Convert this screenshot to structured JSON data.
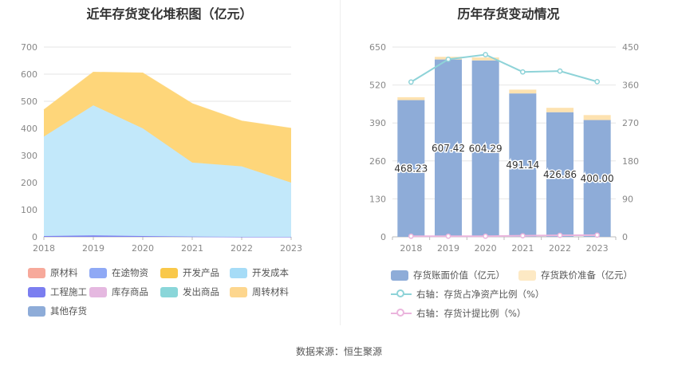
{
  "left": {
    "title": "近年存货变化堆积图（亿元）",
    "legend": [
      {
        "label": "原材料",
        "color": "#f7a99b"
      },
      {
        "label": "在途物资",
        "color": "#8fa9f5"
      },
      {
        "label": "开发产品",
        "color": "#f9c84a"
      },
      {
        "label": "开发成本",
        "color": "#a6dcf7"
      },
      {
        "label": "工程施工",
        "color": "#7b7ef0"
      },
      {
        "label": "库存商品",
        "color": "#e5b8e0"
      },
      {
        "label": "发出商品",
        "color": "#8ad6d9"
      },
      {
        "label": "周转材料",
        "color": "#fdd68e"
      },
      {
        "label": "其他存货",
        "color": "#8eacd8"
      }
    ]
  },
  "right": {
    "title": "历年存货变动情况",
    "legend": [
      {
        "label": "存货账面价值（亿元）",
        "color": "#8eacd8"
      },
      {
        "label": "存货跌价准备（亿元）",
        "color": "#fde9c4"
      },
      {
        "label": "右轴：存货占净资产比例（%）",
        "color": "#8ed3d8"
      },
      {
        "label": "右轴：存货计提比例（%）",
        "color": "#ebb5dd"
      }
    ]
  },
  "source": "数据来源：恒生聚源",
  "chart_data": [
    {
      "type": "area",
      "title": "近年存货变化堆积图（亿元）",
      "x": [
        "2018",
        "2019",
        "2020",
        "2021",
        "2022",
        "2023"
      ],
      "ylim": [
        0,
        700
      ],
      "yticks": [
        0,
        100,
        200,
        300,
        400,
        500,
        600,
        700
      ],
      "stacked": true,
      "series": [
        {
          "name": "工程施工",
          "color": "#7b7ef0",
          "values": [
            3,
            5,
            3,
            1,
            0,
            0
          ]
        },
        {
          "name": "开发成本",
          "color": "#c2e8fa",
          "values": [
            367,
            480,
            397,
            273,
            260,
            200
          ]
        },
        {
          "name": "开发产品",
          "color": "#fed67a",
          "values": [
            98,
            122,
            204,
            217,
            167,
            200
          ]
        }
      ]
    },
    {
      "type": "bar",
      "title": "历年存货变动情况",
      "categories": [
        "2018",
        "2019",
        "2020",
        "2021",
        "2022",
        "2023"
      ],
      "ylim": [
        0,
        650
      ],
      "yticks": [
        0,
        130,
        260,
        390,
        520,
        650
      ],
      "y2lim": [
        0,
        450
      ],
      "y2ticks": [
        0,
        90,
        180,
        270,
        360,
        450
      ],
      "series": [
        {
          "name": "存货账面价值（亿元）",
          "color": "#8eacd8",
          "values": [
            468.23,
            607.42,
            604.29,
            491.14,
            426.86,
            400.0
          ],
          "labels": [
            "468.23",
            "607.42",
            "604.29",
            "491.14",
            "426.86",
            "400.00"
          ]
        },
        {
          "name": "存货跌价准备（亿元）",
          "color": "#fde2b0",
          "values": [
            10,
            9,
            10,
            13,
            15,
            17
          ]
        },
        {
          "name": "右轴：存货占净资产比例（%）",
          "axis": "right",
          "color": "#8ed3d8",
          "values": [
            367,
            421,
            432,
            391,
            393,
            368
          ]
        },
        {
          "name": "右轴：存货计提比例（%）",
          "axis": "right",
          "color": "#ebb5dd",
          "values": [
            1.5,
            1.5,
            1.5,
            2.5,
            3.5,
            4.0
          ]
        }
      ]
    }
  ]
}
